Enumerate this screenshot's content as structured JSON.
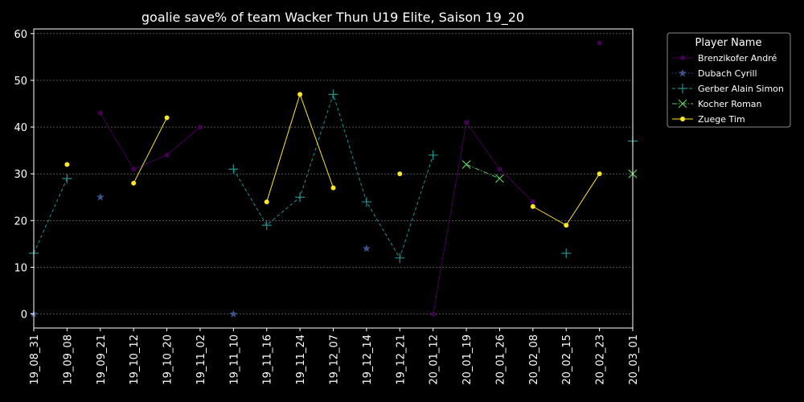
{
  "chart_data": {
    "type": "line",
    "title": "goalie save% of team Wacker Thun U19 Elite, Saison 19_20",
    "xlabel": "",
    "ylabel": "",
    "ylim": [
      -3,
      61
    ],
    "yticks": [
      0,
      10,
      20,
      30,
      40,
      50,
      60
    ],
    "grid": true,
    "legend_position": "upper-right-outside",
    "legend_title": "Player Name",
    "categories": [
      "19_08_31",
      "19_09_08",
      "19_09_21",
      "19_10_12",
      "19_10_20",
      "19_11_02",
      "19_11_10",
      "19_11_16",
      "19_11_24",
      "19_12_07",
      "19_12_14",
      "19_12_21",
      "20_01_12",
      "20_01_19",
      "20_01_26",
      "20_02_08",
      "20_02_15",
      "20_02_23",
      "20_03_01"
    ],
    "series": [
      {
        "name": "Brenzikofer André",
        "color": "#440154",
        "marker": "circle",
        "dash": "solid",
        "values": [
          null,
          null,
          43,
          31,
          34,
          40,
          null,
          null,
          null,
          null,
          null,
          null,
          0,
          41,
          31,
          24,
          null,
          58,
          null
        ]
      },
      {
        "name": "Dubach Cyrill",
        "color": "#3b528b",
        "marker": "star",
        "dash": "dotted",
        "values": [
          0,
          null,
          25,
          null,
          null,
          null,
          0,
          null,
          null,
          null,
          14,
          null,
          null,
          null,
          null,
          null,
          null,
          null,
          null
        ]
      },
      {
        "name": "Gerber Alain Simon",
        "color": "#21918c",
        "marker": "plus",
        "dash": "dashed",
        "values": [
          13,
          29,
          null,
          null,
          null,
          null,
          31,
          19,
          25,
          47,
          24,
          12,
          34,
          null,
          null,
          null,
          13,
          null,
          37
        ]
      },
      {
        "name": "Kocher Roman",
        "color": "#5ec962",
        "marker": "x",
        "dash": "dashdot",
        "values": [
          null,
          null,
          null,
          null,
          null,
          null,
          null,
          null,
          null,
          null,
          null,
          null,
          null,
          32,
          29,
          null,
          null,
          null,
          30
        ]
      },
      {
        "name": "Zuege Tim",
        "color": "#fde725",
        "marker": "circle",
        "dash": "solid",
        "values": [
          null,
          32,
          null,
          28,
          42,
          null,
          null,
          24,
          47,
          27,
          null,
          30,
          null,
          null,
          null,
          23,
          19,
          30,
          null
        ]
      }
    ]
  }
}
